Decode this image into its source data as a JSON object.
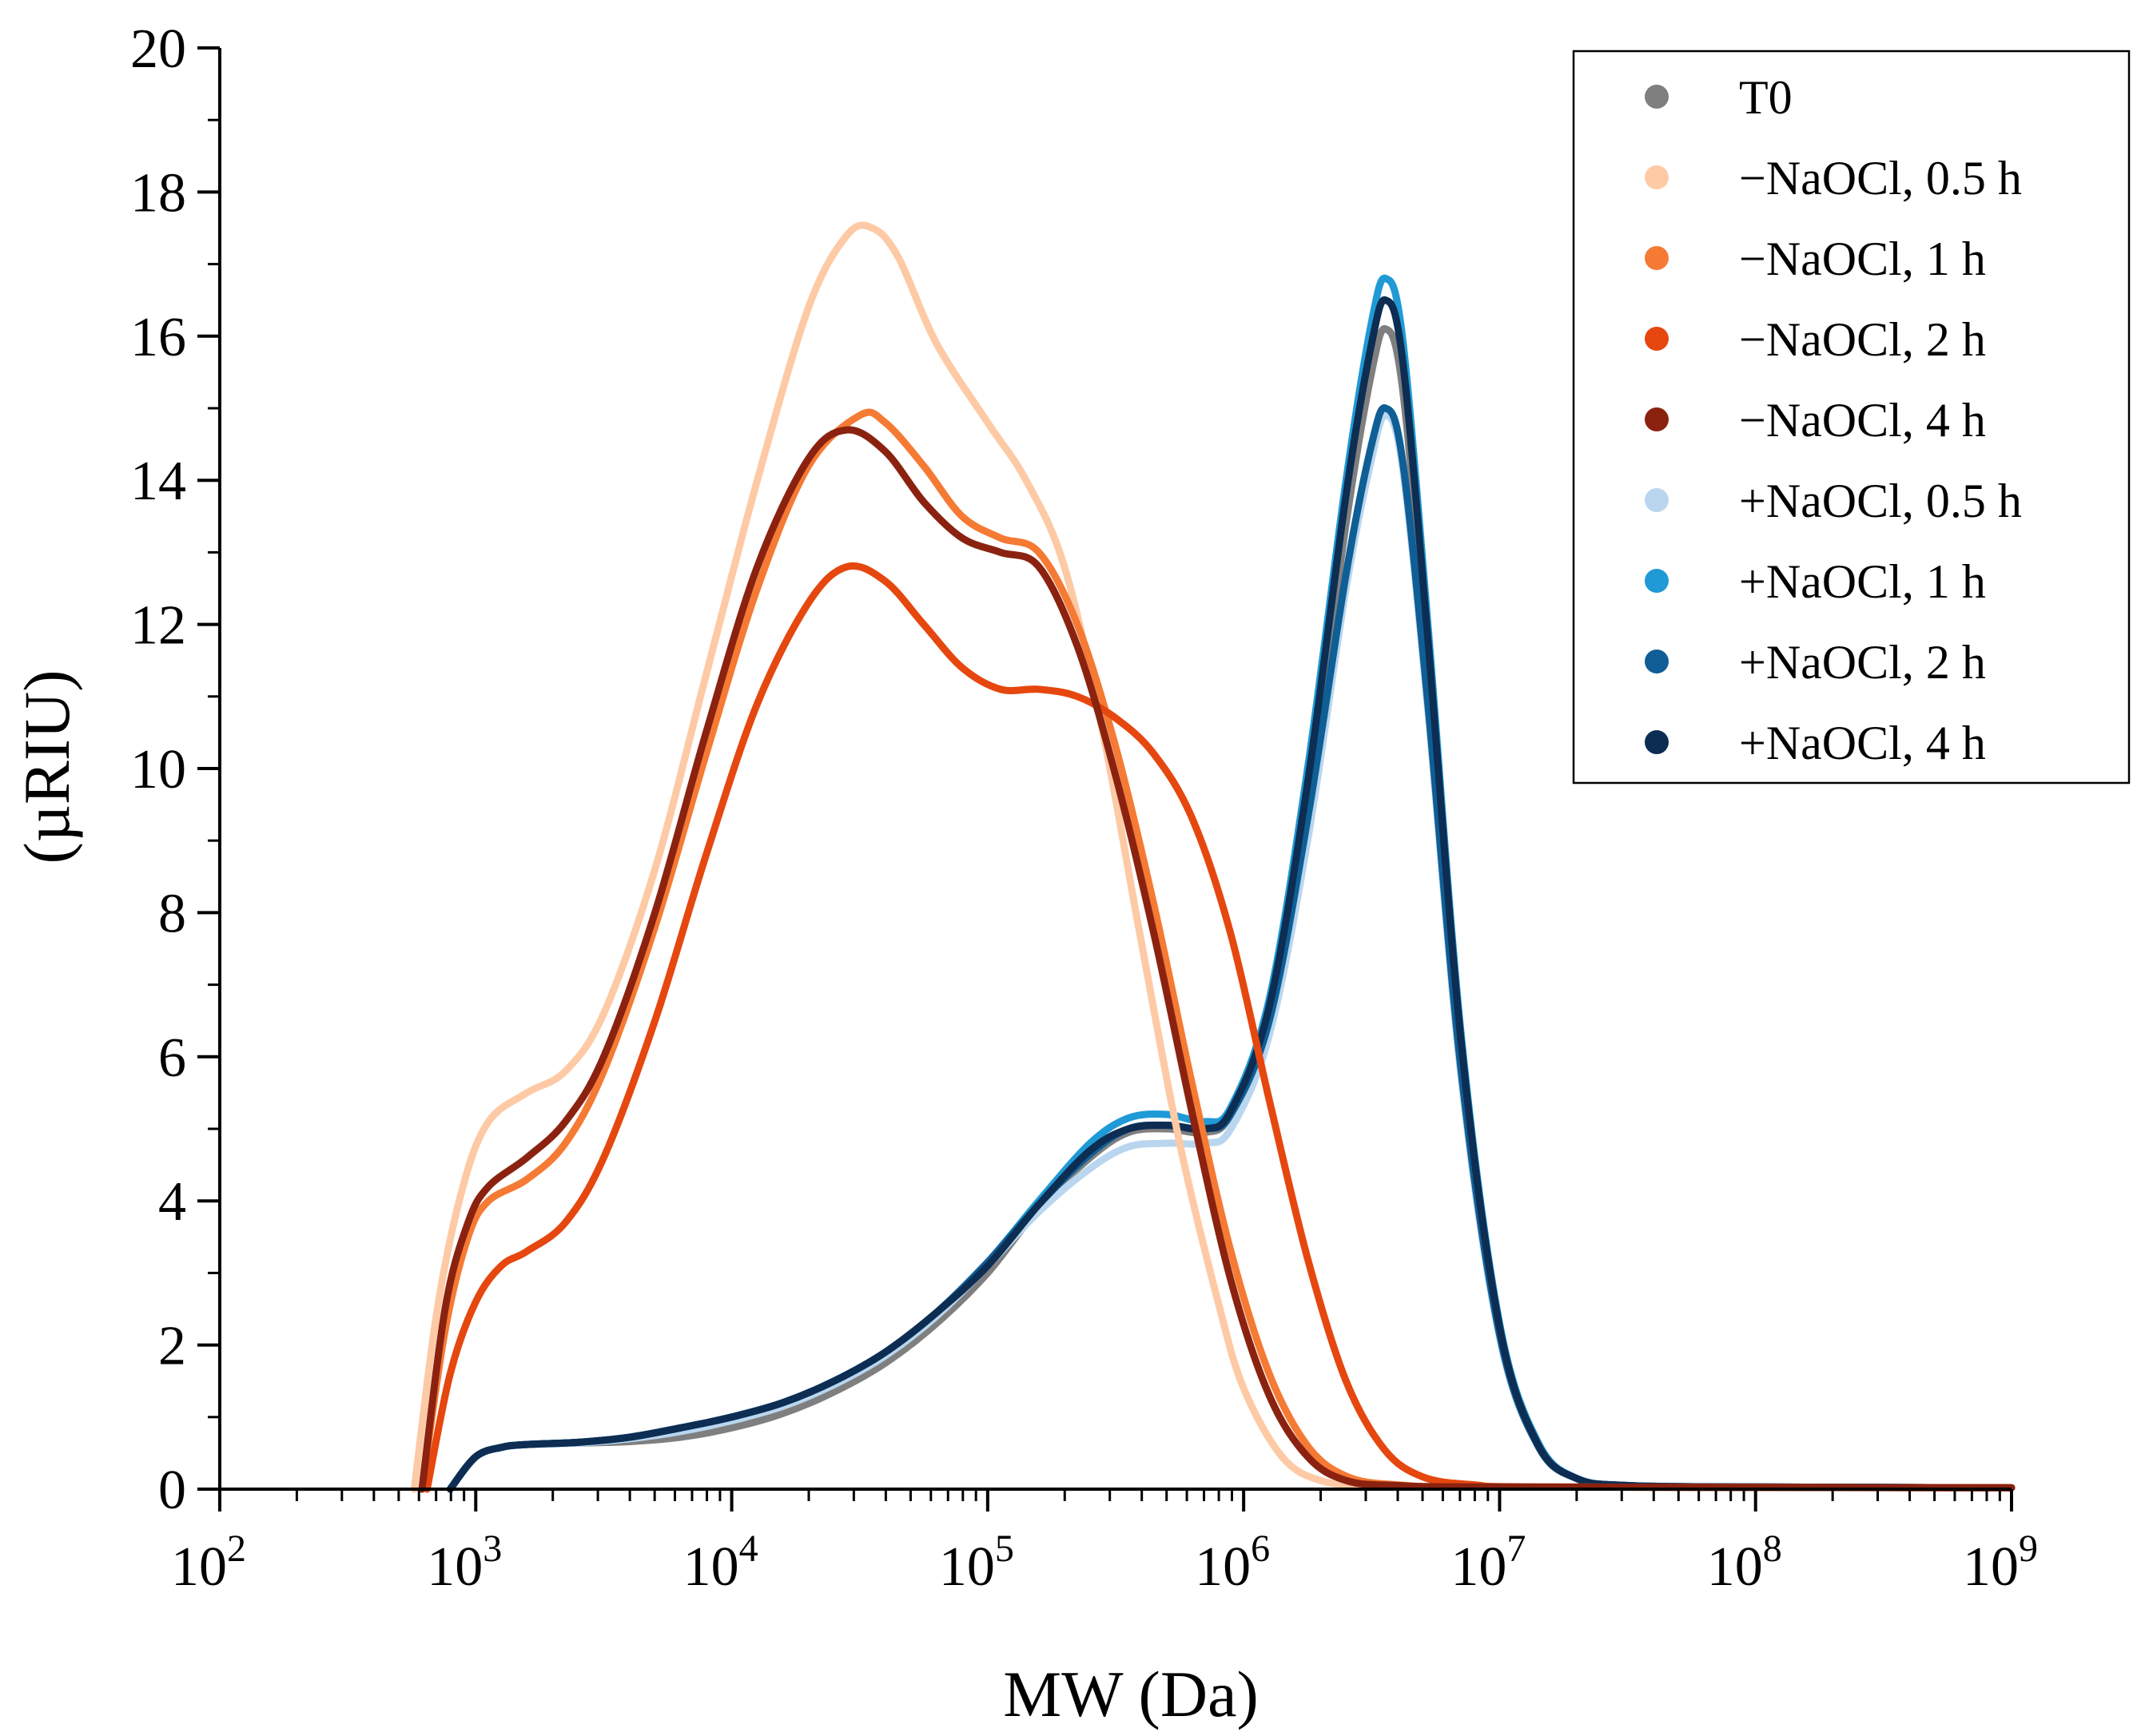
{
  "chart_data": {
    "type": "line",
    "title": "",
    "xlabel": "MW (Da)",
    "ylabel": "(µRIU)",
    "x_scale": "log",
    "xlim": [
      100,
      1000000000
    ],
    "ylim": [
      0,
      20
    ],
    "x_ticks": [
      {
        "value": 100,
        "base": "10",
        "exp": "2"
      },
      {
        "value": 1000,
        "base": "10",
        "exp": "3"
      },
      {
        "value": 10000,
        "base": "10",
        "exp": "4"
      },
      {
        "value": 100000,
        "base": "10",
        "exp": "5"
      },
      {
        "value": 1000000,
        "base": "10",
        "exp": "6"
      },
      {
        "value": 10000000,
        "base": "10",
        "exp": "7"
      },
      {
        "value": 100000000,
        "base": "10",
        "exp": "8"
      },
      {
        "value": 1000000000,
        "base": "10",
        "exp": "9"
      }
    ],
    "y_ticks": [
      "0",
      "2",
      "4",
      "6",
      "8",
      "10",
      "12",
      "14",
      "16",
      "18",
      "20"
    ],
    "grid": false,
    "legend_position": "top-right",
    "series": [
      {
        "name": "T0",
        "color": "#7f7f7f",
        "points": [
          [
            2.9,
            0
          ],
          [
            3.0,
            0.45
          ],
          [
            3.1,
            0.58
          ],
          [
            3.2,
            0.62
          ],
          [
            3.4,
            0.64
          ],
          [
            3.6,
            0.66
          ],
          [
            3.8,
            0.72
          ],
          [
            4.0,
            0.85
          ],
          [
            4.2,
            1.05
          ],
          [
            4.4,
            1.35
          ],
          [
            4.6,
            1.75
          ],
          [
            4.8,
            2.3
          ],
          [
            5.0,
            3.0
          ],
          [
            5.2,
            3.9
          ],
          [
            5.4,
            4.6
          ],
          [
            5.55,
            4.95
          ],
          [
            5.7,
            5.0
          ],
          [
            5.85,
            4.95
          ],
          [
            5.95,
            5.2
          ],
          [
            6.1,
            6.6
          ],
          [
            6.25,
            9.5
          ],
          [
            6.4,
            13.4
          ],
          [
            6.5,
            15.5
          ],
          [
            6.555,
            16.1
          ],
          [
            6.62,
            15.3
          ],
          [
            6.72,
            11.5
          ],
          [
            6.85,
            6.0
          ],
          [
            7.0,
            2.2
          ],
          [
            7.15,
            0.6
          ],
          [
            7.3,
            0.15
          ],
          [
            7.5,
            0.05
          ],
          [
            8.0,
            0.03
          ],
          [
            9.0,
            0.02
          ]
        ]
      },
      {
        "name": "+NaOCl, 0.5 h",
        "color": "#b9d6ee",
        "points": [
          [
            2.9,
            0
          ],
          [
            3.0,
            0.45
          ],
          [
            3.1,
            0.58
          ],
          [
            3.2,
            0.62
          ],
          [
            3.4,
            0.64
          ],
          [
            3.6,
            0.7
          ],
          [
            3.8,
            0.8
          ],
          [
            4.0,
            0.95
          ],
          [
            4.2,
            1.15
          ],
          [
            4.4,
            1.45
          ],
          [
            4.6,
            1.85
          ],
          [
            4.8,
            2.4
          ],
          [
            5.0,
            3.1
          ],
          [
            5.2,
            3.85
          ],
          [
            5.4,
            4.45
          ],
          [
            5.55,
            4.75
          ],
          [
            5.7,
            4.8
          ],
          [
            5.85,
            4.8
          ],
          [
            5.95,
            5.0
          ],
          [
            6.1,
            6.3
          ],
          [
            6.25,
            9.0
          ],
          [
            6.4,
            12.5
          ],
          [
            6.5,
            14.3
          ],
          [
            6.555,
            14.9
          ],
          [
            6.62,
            14.2
          ],
          [
            6.72,
            10.8
          ],
          [
            6.85,
            5.7
          ],
          [
            7.0,
            2.1
          ],
          [
            7.15,
            0.6
          ],
          [
            7.3,
            0.15
          ],
          [
            7.5,
            0.05
          ],
          [
            8.0,
            0.03
          ],
          [
            9.0,
            0.02
          ]
        ]
      },
      {
        "name": "+NaOCl, 1 h",
        "color": "#1f9ad6",
        "points": [
          [
            2.9,
            0
          ],
          [
            3.0,
            0.45
          ],
          [
            3.1,
            0.58
          ],
          [
            3.2,
            0.62
          ],
          [
            3.4,
            0.65
          ],
          [
            3.6,
            0.72
          ],
          [
            3.8,
            0.85
          ],
          [
            4.0,
            1.0
          ],
          [
            4.2,
            1.2
          ],
          [
            4.4,
            1.5
          ],
          [
            4.6,
            1.9
          ],
          [
            4.8,
            2.45
          ],
          [
            5.0,
            3.15
          ],
          [
            5.2,
            4.0
          ],
          [
            5.4,
            4.8
          ],
          [
            5.55,
            5.15
          ],
          [
            5.7,
            5.2
          ],
          [
            5.85,
            5.1
          ],
          [
            5.95,
            5.3
          ],
          [
            6.1,
            6.8
          ],
          [
            6.25,
            10.0
          ],
          [
            6.4,
            14.0
          ],
          [
            6.5,
            16.2
          ],
          [
            6.555,
            16.8
          ],
          [
            6.62,
            16.0
          ],
          [
            6.72,
            12.0
          ],
          [
            6.85,
            6.3
          ],
          [
            7.0,
            2.3
          ],
          [
            7.15,
            0.65
          ],
          [
            7.3,
            0.15
          ],
          [
            7.5,
            0.05
          ],
          [
            8.0,
            0.03
          ],
          [
            9.0,
            0.02
          ]
        ]
      },
      {
        "name": "+NaOCl, 2 h",
        "color": "#0f5e96",
        "points": [
          [
            2.9,
            0
          ],
          [
            3.0,
            0.45
          ],
          [
            3.1,
            0.58
          ],
          [
            3.2,
            0.62
          ],
          [
            3.4,
            0.65
          ],
          [
            3.6,
            0.72
          ],
          [
            3.8,
            0.85
          ],
          [
            4.0,
            1.0
          ],
          [
            4.2,
            1.2
          ],
          [
            4.4,
            1.5
          ],
          [
            4.6,
            1.9
          ],
          [
            4.8,
            2.45
          ],
          [
            5.0,
            3.15
          ],
          [
            5.2,
            3.95
          ],
          [
            5.4,
            4.65
          ],
          [
            5.55,
            5.0
          ],
          [
            5.7,
            5.05
          ],
          [
            5.85,
            5.0
          ],
          [
            5.95,
            5.2
          ],
          [
            6.1,
            6.5
          ],
          [
            6.25,
            9.3
          ],
          [
            6.4,
            12.7
          ],
          [
            6.5,
            14.5
          ],
          [
            6.555,
            15.0
          ],
          [
            6.62,
            14.3
          ],
          [
            6.72,
            10.9
          ],
          [
            6.85,
            5.8
          ],
          [
            7.0,
            2.15
          ],
          [
            7.15,
            0.6
          ],
          [
            7.3,
            0.15
          ],
          [
            7.5,
            0.05
          ],
          [
            8.0,
            0.03
          ],
          [
            9.0,
            0.02
          ]
        ]
      },
      {
        "name": "+NaOCl, 4 h",
        "color": "#0d2d52",
        "points": [
          [
            2.9,
            0
          ],
          [
            3.0,
            0.45
          ],
          [
            3.1,
            0.58
          ],
          [
            3.2,
            0.62
          ],
          [
            3.4,
            0.65
          ],
          [
            3.6,
            0.72
          ],
          [
            3.8,
            0.85
          ],
          [
            4.0,
            1.0
          ],
          [
            4.2,
            1.2
          ],
          [
            4.4,
            1.5
          ],
          [
            4.6,
            1.9
          ],
          [
            4.8,
            2.45
          ],
          [
            5.0,
            3.1
          ],
          [
            5.2,
            3.95
          ],
          [
            5.4,
            4.7
          ],
          [
            5.55,
            5.0
          ],
          [
            5.7,
            5.05
          ],
          [
            5.85,
            5.0
          ],
          [
            5.95,
            5.25
          ],
          [
            6.1,
            6.7
          ],
          [
            6.25,
            9.8
          ],
          [
            6.4,
            13.8
          ],
          [
            6.5,
            15.9
          ],
          [
            6.555,
            16.5
          ],
          [
            6.62,
            15.7
          ],
          [
            6.72,
            11.8
          ],
          [
            6.85,
            6.2
          ],
          [
            7.0,
            2.25
          ],
          [
            7.15,
            0.62
          ],
          [
            7.3,
            0.15
          ],
          [
            7.5,
            0.05
          ],
          [
            8.0,
            0.03
          ],
          [
            9.0,
            0.02
          ]
        ]
      },
      {
        "name": "−NaOCl, 0.5 h",
        "color": "#fdcaa5",
        "points": [
          [
            2.76,
            0
          ],
          [
            2.85,
            2.5
          ],
          [
            2.95,
            4.2
          ],
          [
            3.05,
            5.1
          ],
          [
            3.2,
            5.5
          ],
          [
            3.35,
            5.8
          ],
          [
            3.5,
            6.6
          ],
          [
            3.7,
            8.6
          ],
          [
            3.9,
            11.3
          ],
          [
            4.1,
            14.0
          ],
          [
            4.3,
            16.4
          ],
          [
            4.45,
            17.4
          ],
          [
            4.55,
            17.5
          ],
          [
            4.65,
            17.1
          ],
          [
            4.8,
            15.9
          ],
          [
            5.0,
            14.8
          ],
          [
            5.15,
            14.0
          ],
          [
            5.3,
            12.8
          ],
          [
            5.45,
            10.5
          ],
          [
            5.6,
            7.6
          ],
          [
            5.75,
            4.8
          ],
          [
            5.9,
            2.6
          ],
          [
            6.0,
            1.4
          ],
          [
            6.15,
            0.45
          ],
          [
            6.3,
            0.12
          ],
          [
            6.5,
            0.05
          ],
          [
            7.0,
            0.03
          ],
          [
            9.0,
            0.02
          ]
        ]
      },
      {
        "name": "−NaOCl, 1 h",
        "color": "#f57a34",
        "points": [
          [
            2.79,
            0
          ],
          [
            2.88,
            2.2
          ],
          [
            2.97,
            3.5
          ],
          [
            3.05,
            4.0
          ],
          [
            3.2,
            4.3
          ],
          [
            3.35,
            4.8
          ],
          [
            3.5,
            5.8
          ],
          [
            3.7,
            7.8
          ],
          [
            3.9,
            10.2
          ],
          [
            4.1,
            12.5
          ],
          [
            4.3,
            14.2
          ],
          [
            4.5,
            14.9
          ],
          [
            4.6,
            14.8
          ],
          [
            4.75,
            14.2
          ],
          [
            4.9,
            13.5
          ],
          [
            5.05,
            13.2
          ],
          [
            5.2,
            13.0
          ],
          [
            5.35,
            12.0
          ],
          [
            5.5,
            10.3
          ],
          [
            5.65,
            8.1
          ],
          [
            5.8,
            5.6
          ],
          [
            5.95,
            3.3
          ],
          [
            6.1,
            1.6
          ],
          [
            6.25,
            0.6
          ],
          [
            6.4,
            0.18
          ],
          [
            6.6,
            0.06
          ],
          [
            7.0,
            0.03
          ],
          [
            9.0,
            0.02
          ]
        ]
      },
      {
        "name": "−NaOCl, 2 h",
        "color": "#e5470f",
        "points": [
          [
            2.81,
            0
          ],
          [
            2.9,
            1.6
          ],
          [
            3.0,
            2.6
          ],
          [
            3.1,
            3.1
          ],
          [
            3.2,
            3.3
          ],
          [
            3.35,
            3.7
          ],
          [
            3.5,
            4.6
          ],
          [
            3.7,
            6.5
          ],
          [
            3.9,
            8.8
          ],
          [
            4.1,
            10.9
          ],
          [
            4.3,
            12.3
          ],
          [
            4.45,
            12.8
          ],
          [
            4.6,
            12.6
          ],
          [
            4.75,
            12.0
          ],
          [
            4.9,
            11.4
          ],
          [
            5.05,
            11.1
          ],
          [
            5.2,
            11.1
          ],
          [
            5.35,
            11.0
          ],
          [
            5.5,
            10.7
          ],
          [
            5.65,
            10.2
          ],
          [
            5.8,
            9.3
          ],
          [
            5.95,
            7.7
          ],
          [
            6.1,
            5.4
          ],
          [
            6.25,
            3.2
          ],
          [
            6.4,
            1.5
          ],
          [
            6.55,
            0.55
          ],
          [
            6.7,
            0.17
          ],
          [
            6.9,
            0.06
          ],
          [
            7.2,
            0.03
          ],
          [
            9.0,
            0.02
          ]
        ]
      },
      {
        "name": "−NaOCl, 4 h",
        "color": "#8b2210",
        "points": [
          [
            2.79,
            0
          ],
          [
            2.88,
            2.5
          ],
          [
            2.97,
            3.7
          ],
          [
            3.05,
            4.2
          ],
          [
            3.2,
            4.6
          ],
          [
            3.35,
            5.1
          ],
          [
            3.5,
            6.0
          ],
          [
            3.7,
            8.0
          ],
          [
            3.9,
            10.5
          ],
          [
            4.1,
            12.8
          ],
          [
            4.3,
            14.3
          ],
          [
            4.45,
            14.7
          ],
          [
            4.6,
            14.4
          ],
          [
            4.75,
            13.7
          ],
          [
            4.9,
            13.2
          ],
          [
            5.05,
            13.0
          ],
          [
            5.2,
            12.8
          ],
          [
            5.35,
            11.7
          ],
          [
            5.5,
            9.9
          ],
          [
            5.65,
            7.7
          ],
          [
            5.8,
            5.2
          ],
          [
            5.95,
            2.9
          ],
          [
            6.1,
            1.3
          ],
          [
            6.25,
            0.45
          ],
          [
            6.4,
            0.12
          ],
          [
            6.6,
            0.05
          ],
          [
            7.0,
            0.03
          ],
          [
            9.0,
            0.02
          ]
        ]
      }
    ]
  },
  "legend": [
    {
      "label": "T0",
      "color": "#7f7f7f"
    },
    {
      "label": "−NaOCl, 0.5 h",
      "color": "#fdcaa5"
    },
    {
      "label": "−NaOCl, 1 h",
      "color": "#f57a34"
    },
    {
      "label": "−NaOCl, 2 h",
      "color": "#e5470f"
    },
    {
      "label": "−NaOCl, 4 h",
      "color": "#8b2210"
    },
    {
      "label": "+NaOCl, 0.5 h",
      "color": "#b9d6ee"
    },
    {
      "label": "+NaOCl, 1 h",
      "color": "#1f9ad6"
    },
    {
      "label": "+NaOCl, 2 h",
      "color": "#0f5e96"
    },
    {
      "label": "+NaOCl, 4 h",
      "color": "#0d2d52"
    }
  ]
}
